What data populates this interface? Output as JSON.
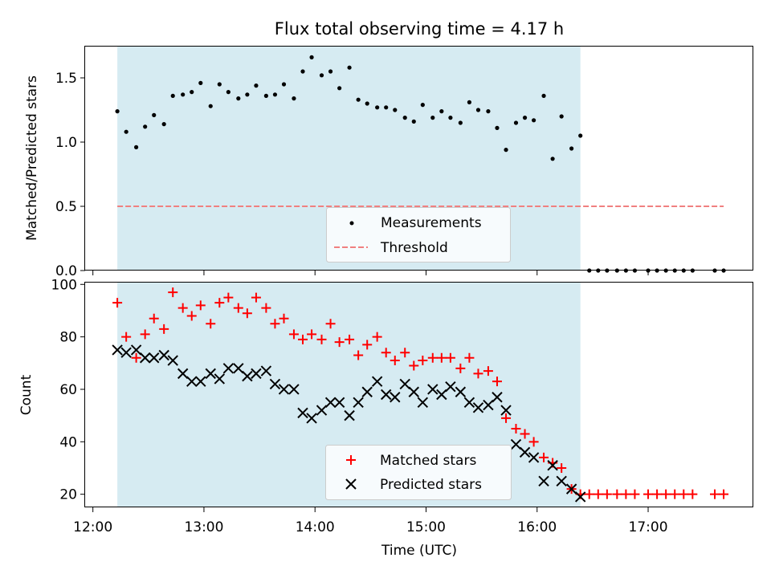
{
  "chart_data": [
    {
      "type": "scatter",
      "title": "Flux total observing time = 4.17 h",
      "xlabel": "",
      "ylabel": "Matched/Predicted stars",
      "xlim": [
        11.93,
        17.94
      ],
      "ylim": [
        0.0,
        1.75
      ],
      "yticks": [
        0.0,
        0.5,
        1.0,
        1.5
      ],
      "ytick_labels": [
        "0.0",
        "0.5",
        "1.0",
        "1.5"
      ],
      "xticks": [
        12,
        13,
        14,
        15,
        16,
        17
      ],
      "shaded_span": [
        12.22,
        16.39
      ],
      "threshold": 0.5,
      "legend_location": "lower center",
      "series": [
        {
          "name": "Measurements",
          "marker": "dot",
          "color": "#000000",
          "x": [
            12.22,
            12.3,
            12.39,
            12.47,
            12.55,
            12.64,
            12.72,
            12.81,
            12.89,
            12.97,
            13.06,
            13.14,
            13.22,
            13.31,
            13.39,
            13.47,
            13.56,
            13.64,
            13.72,
            13.81,
            13.89,
            13.97,
            14.06,
            14.14,
            14.22,
            14.31,
            14.39,
            14.47,
            14.56,
            14.64,
            14.72,
            14.81,
            14.89,
            14.97,
            15.06,
            15.14,
            15.22,
            15.31,
            15.39,
            15.47,
            15.56,
            15.64,
            15.72,
            15.81,
            15.89,
            15.97,
            16.06,
            16.14,
            16.22,
            16.31,
            16.39,
            16.47,
            16.55,
            16.63,
            16.72,
            16.8,
            16.88,
            17.0,
            17.08,
            17.16,
            17.24,
            17.32,
            17.4,
            17.6,
            17.68
          ],
          "y": [
            1.24,
            1.08,
            0.96,
            1.12,
            1.21,
            1.14,
            1.36,
            1.37,
            1.39,
            1.46,
            1.28,
            1.45,
            1.39,
            1.34,
            1.37,
            1.44,
            1.36,
            1.37,
            1.45,
            1.34,
            1.55,
            1.66,
            1.52,
            1.55,
            1.42,
            1.58,
            1.33,
            1.3,
            1.27,
            1.27,
            1.25,
            1.19,
            1.16,
            1.29,
            1.19,
            1.24,
            1.19,
            1.15,
            1.31,
            1.25,
            1.24,
            1.11,
            0.94,
            1.15,
            1.19,
            1.17,
            1.36,
            0.87,
            1.2,
            0.95,
            1.05,
            0.0,
            0.0,
            0.0,
            0.0,
            0.0,
            0.0,
            0.0,
            0.0,
            0.0,
            0.0,
            0.0,
            0.0,
            0.0,
            0.0
          ]
        },
        {
          "name": "Threshold",
          "marker": "dashed-line",
          "color": "#f08080",
          "x": [
            12.22,
            17.68
          ],
          "y": [
            0.5,
            0.5
          ]
        }
      ]
    },
    {
      "type": "scatter",
      "title": "",
      "xlabel": "Time (UTC)",
      "ylabel": "Count",
      "xlim": [
        11.93,
        17.94
      ],
      "ylim": [
        15,
        101
      ],
      "yticks": [
        20,
        40,
        60,
        80,
        100
      ],
      "ytick_labels": [
        "20",
        "40",
        "60",
        "80",
        "100"
      ],
      "xticks": [
        12,
        13,
        14,
        15,
        16,
        17
      ],
      "xtick_labels": [
        "12:00",
        "13:00",
        "14:00",
        "15:00",
        "16:00",
        "17:00"
      ],
      "shaded_span": [
        12.22,
        16.39
      ],
      "legend_location": "lower center",
      "series": [
        {
          "name": "Matched stars",
          "marker": "plus",
          "color": "#ff0000",
          "x": [
            12.22,
            12.3,
            12.39,
            12.47,
            12.55,
            12.64,
            12.72,
            12.81,
            12.89,
            12.97,
            13.06,
            13.14,
            13.22,
            13.31,
            13.39,
            13.47,
            13.56,
            13.64,
            13.72,
            13.81,
            13.89,
            13.97,
            14.06,
            14.14,
            14.22,
            14.31,
            14.39,
            14.47,
            14.56,
            14.64,
            14.72,
            14.81,
            14.89,
            14.97,
            15.06,
            15.14,
            15.22,
            15.31,
            15.39,
            15.47,
            15.56,
            15.64,
            15.72,
            15.81,
            15.89,
            15.97,
            16.06,
            16.14,
            16.22,
            16.31,
            16.39,
            16.47,
            16.55,
            16.63,
            16.72,
            16.8,
            16.88,
            17.0,
            17.08,
            17.16,
            17.24,
            17.32,
            17.4,
            17.6,
            17.68
          ],
          "y": [
            93,
            80,
            72,
            81,
            87,
            83,
            97,
            91,
            88,
            92,
            85,
            93,
            95,
            91,
            89,
            95,
            91,
            85,
            87,
            81,
            79,
            81,
            79,
            85,
            78,
            79,
            73,
            77,
            80,
            74,
            71,
            74,
            69,
            71,
            72,
            72,
            72,
            68,
            72,
            66,
            67,
            63,
            49,
            45,
            43,
            40,
            34,
            32,
            30,
            22,
            20,
            20,
            20,
            20,
            20,
            20,
            20,
            20,
            20,
            20,
            20,
            20,
            20,
            20,
            20
          ]
        },
        {
          "name": "Predicted stars",
          "marker": "x",
          "color": "#000000",
          "x": [
            12.22,
            12.3,
            12.39,
            12.47,
            12.55,
            12.64,
            12.72,
            12.81,
            12.89,
            12.97,
            13.06,
            13.14,
            13.22,
            13.31,
            13.39,
            13.47,
            13.56,
            13.64,
            13.72,
            13.81,
            13.89,
            13.97,
            14.06,
            14.14,
            14.22,
            14.31,
            14.39,
            14.47,
            14.56,
            14.64,
            14.72,
            14.81,
            14.89,
            14.97,
            15.06,
            15.14,
            15.22,
            15.31,
            15.39,
            15.47,
            15.56,
            15.64,
            15.72,
            15.81,
            15.89,
            15.97,
            16.06,
            16.14,
            16.22,
            16.31,
            16.39
          ],
          "y": [
            75,
            74,
            75,
            72,
            72,
            73,
            71,
            66,
            63,
            63,
            66,
            64,
            68,
            68,
            65,
            66,
            67,
            62,
            60,
            60,
            51,
            49,
            52,
            55,
            55,
            50,
            55,
            59,
            63,
            58,
            57,
            62,
            59,
            55,
            60,
            58,
            61,
            59,
            55,
            53,
            54,
            57,
            52,
            39,
            36,
            34,
            25,
            31,
            25,
            22,
            19
          ]
        }
      ]
    }
  ]
}
